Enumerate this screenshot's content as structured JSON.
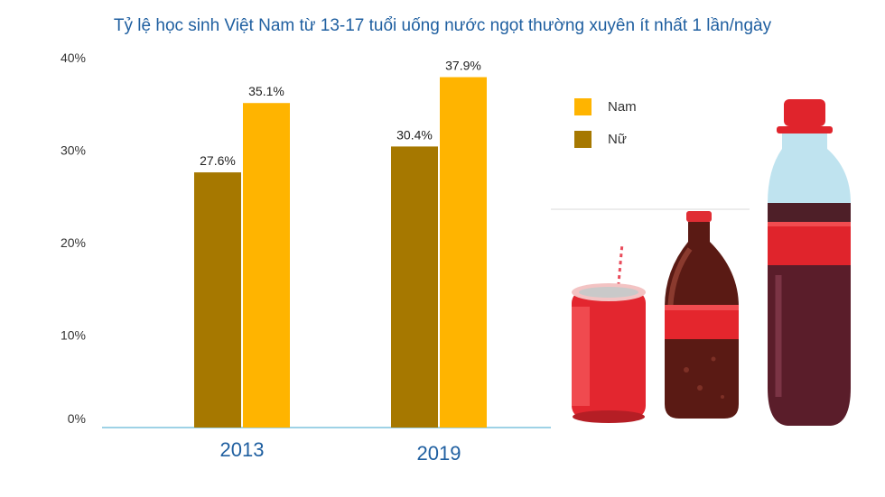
{
  "colors": {
    "nam": "#FFB400",
    "nu": "#A67800",
    "axis": "#7FC3DD",
    "title": "#1F5FA0"
  },
  "chart_data": {
    "type": "bar",
    "title": "Tỷ lệ học sinh Việt Nam từ 13-17 tuổi uống nước ngọt thường xuyên ít nhất 1 lần/ngày",
    "categories": [
      "2013",
      "2019"
    ],
    "series": [
      {
        "name": "Nữ",
        "values": [
          27.6,
          30.4
        ],
        "labels": [
          "27.6%",
          "30.4%"
        ]
      },
      {
        "name": "Nam",
        "values": [
          35.1,
          37.9
        ],
        "labels": [
          "35.1%",
          "37.9%"
        ]
      }
    ],
    "ylim": [
      0,
      40
    ],
    "yticks": [
      0,
      10,
      20,
      30,
      40
    ],
    "ytick_labels": [
      "0%",
      "10%",
      "20%",
      "30%",
      "40%"
    ],
    "xlabel": "",
    "ylabel": "",
    "grid": false,
    "legend": {
      "placement": "right",
      "order": [
        "Nam",
        "Nữ"
      ]
    }
  },
  "illustration": {
    "description_icon": "soft-drinks-icon"
  }
}
